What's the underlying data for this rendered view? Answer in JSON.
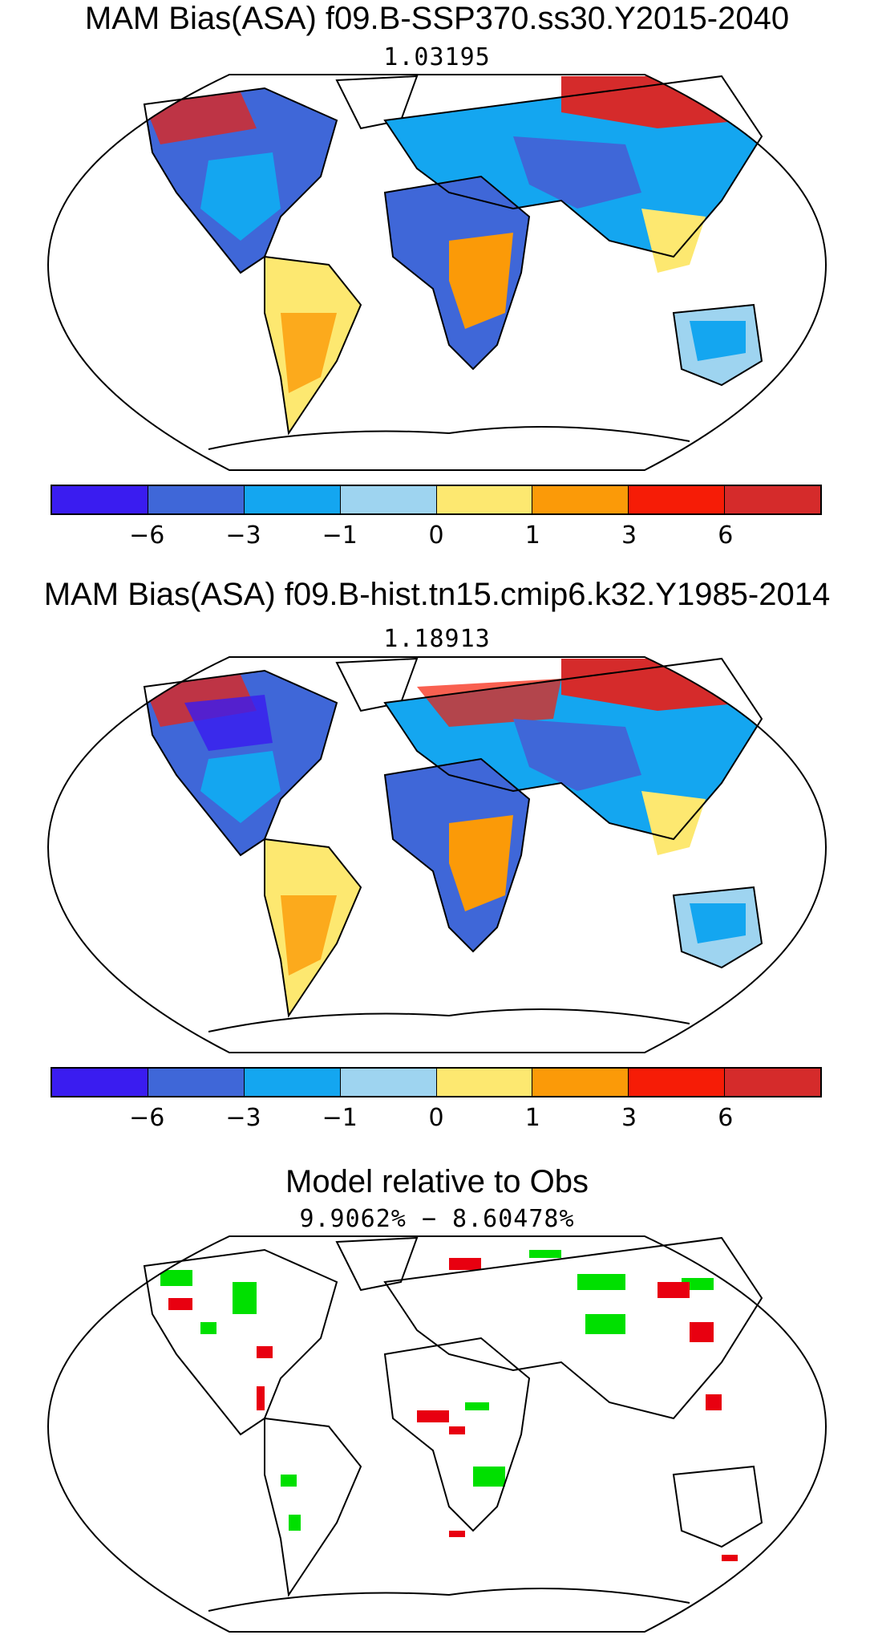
{
  "panels": [
    {
      "title": "MAM Bias(ASA) f09.B-SSP370.ss30.Y2015-2040",
      "subtitle": "1.03195",
      "kind": "bias"
    },
    {
      "title": "MAM Bias(ASA) f09.B-hist.tn15.cmip6.k32.Y1985-2014",
      "subtitle": "1.18913",
      "kind": "bias"
    },
    {
      "title": "Model relative to Obs",
      "subtitle": "9.9062% − 8.60478%",
      "kind": "relative"
    }
  ],
  "colorbar": {
    "colors": [
      "#3a1cf0",
      "#3f67d8",
      "#14a6f0",
      "#9ed4f0",
      "#fde870",
      "#fb9a08",
      "#f61c06",
      "#d52b2b"
    ],
    "labels": [
      "−6",
      "−3",
      "−1",
      "0",
      "1",
      "3",
      "6"
    ]
  },
  "relative_colors": {
    "positive": "#00e000",
    "negative": "#e80010"
  }
}
